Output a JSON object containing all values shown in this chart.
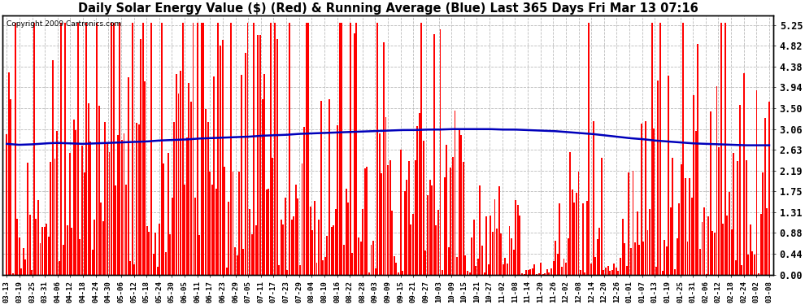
{
  "title": "Daily Solar Energy Value ($) (Red) & Running Average (Blue) Last 365 Days Fri Mar 13 07:16",
  "copyright": "Copyright 2009 Cartronics.com",
  "yticks": [
    0.0,
    0.44,
    0.88,
    1.31,
    1.75,
    2.19,
    2.63,
    3.06,
    3.5,
    3.94,
    4.38,
    4.82,
    5.25
  ],
  "ylim": [
    0,
    5.45
  ],
  "bar_color": "#ff0000",
  "avg_color": "#0000bb",
  "bg_color": "#ffffff",
  "grid_color": "#bbbbbb",
  "title_fontsize": 10.5,
  "tick_fontsize": 8.5,
  "xtick_labels": [
    "03-13",
    "03-19",
    "03-25",
    "03-31",
    "04-06",
    "04-12",
    "04-18",
    "04-24",
    "04-30",
    "05-06",
    "05-12",
    "05-18",
    "05-24",
    "05-30",
    "06-05",
    "06-11",
    "06-17",
    "06-23",
    "06-29",
    "07-05",
    "07-11",
    "07-17",
    "07-23",
    "07-29",
    "08-04",
    "08-10",
    "08-16",
    "08-22",
    "08-28",
    "09-03",
    "09-09",
    "09-15",
    "09-21",
    "09-27",
    "10-03",
    "10-09",
    "10-15",
    "10-21",
    "10-27",
    "11-02",
    "11-08",
    "11-14",
    "11-20",
    "11-26",
    "12-02",
    "12-08",
    "12-14",
    "12-20",
    "12-26",
    "01-01",
    "01-07",
    "01-13",
    "01-19",
    "01-25",
    "01-31",
    "02-06",
    "02-12",
    "02-18",
    "02-24",
    "03-02",
    "03-08"
  ],
  "avg_values": [
    2.75,
    2.73,
    2.74,
    2.76,
    2.77,
    2.76,
    2.75,
    2.76,
    2.77,
    2.78,
    2.79,
    2.8,
    2.82,
    2.83,
    2.84,
    2.86,
    2.87,
    2.88,
    2.89,
    2.9,
    2.92,
    2.93,
    2.94,
    2.96,
    2.97,
    2.98,
    2.99,
    3.0,
    3.01,
    3.02,
    3.03,
    3.04,
    3.04,
    3.05,
    3.05,
    3.06,
    3.06,
    3.06,
    3.06,
    3.05,
    3.05,
    3.04,
    3.03,
    3.02,
    3.0,
    2.98,
    2.96,
    2.93,
    2.9,
    2.87,
    2.85,
    2.82,
    2.8,
    2.78,
    2.76,
    2.75,
    2.74,
    2.73,
    2.72,
    2.72,
    2.72
  ]
}
